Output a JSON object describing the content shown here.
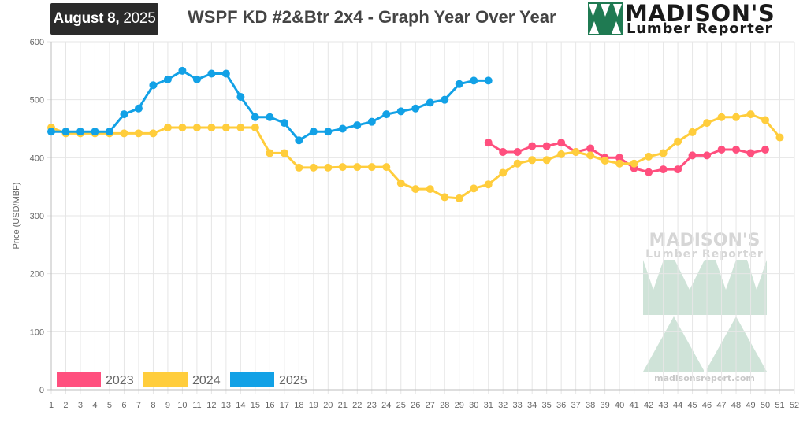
{
  "header": {
    "date_bold": "August 8,",
    "date_year": "2025",
    "title": "WSPF KD #2&Btr 2x4 - Graph Year Over Year",
    "logo_name": "MADISON'S",
    "logo_sub": "Lumber Reporter"
  },
  "watermark": {
    "name": "MADISON'S",
    "sub": "Lumber Reporter",
    "url": "madisonsreport.com"
  },
  "chart_data": {
    "type": "line",
    "title": "WSPF KD #2&Btr 2x4 - Graph Year Over Year",
    "xlabel": "",
    "ylabel": "Price (USD/MBF)",
    "x": [
      1,
      2,
      3,
      4,
      5,
      6,
      7,
      8,
      9,
      10,
      11,
      12,
      13,
      14,
      15,
      16,
      17,
      18,
      19,
      20,
      21,
      22,
      23,
      24,
      25,
      26,
      27,
      28,
      29,
      30,
      31,
      32,
      33,
      34,
      35,
      36,
      37,
      38,
      39,
      40,
      41,
      42,
      43,
      44,
      45,
      46,
      47,
      48,
      49,
      50,
      51,
      52
    ],
    "xlim": [
      1,
      52
    ],
    "ylim": [
      0,
      600
    ],
    "yticks": [
      0,
      100,
      200,
      300,
      400,
      500,
      600
    ],
    "grid": true,
    "legend_position": "bottom-left",
    "series": [
      {
        "name": "2023",
        "color": "#ff4f7e",
        "x": [
          31,
          32,
          33,
          34,
          35,
          36,
          37,
          38,
          39,
          40,
          41,
          42,
          43,
          44,
          45,
          46,
          47,
          48,
          49,
          50
        ],
        "values": [
          426,
          410,
          410,
          420,
          420,
          426,
          410,
          416,
          400,
          400,
          382,
          375,
          380,
          380,
          404,
          404,
          414,
          414,
          408,
          414
        ]
      },
      {
        "name": "2024",
        "color": "#ffcd3c",
        "x": [
          1,
          2,
          3,
          4,
          5,
          6,
          7,
          8,
          9,
          10,
          11,
          12,
          13,
          14,
          15,
          16,
          17,
          18,
          19,
          20,
          21,
          22,
          23,
          24,
          25,
          26,
          27,
          28,
          29,
          30,
          31,
          32,
          33,
          34,
          35,
          36,
          37,
          38,
          39,
          40,
          41,
          42,
          43,
          44,
          45,
          46,
          47,
          48,
          49,
          50,
          51
        ],
        "values": [
          452,
          442,
          442,
          442,
          442,
          442,
          442,
          442,
          452,
          452,
          452,
          452,
          452,
          452,
          452,
          408,
          408,
          383,
          383,
          383,
          384,
          384,
          384,
          384,
          356,
          346,
          346,
          332,
          330,
          347,
          354,
          374,
          390,
          396,
          396,
          406,
          410,
          404,
          395,
          390,
          390,
          402,
          408,
          428,
          444,
          460,
          470,
          470,
          475,
          465,
          435
        ]
      },
      {
        "name": "2025",
        "color": "#12a1e6",
        "x": [
          1,
          2,
          3,
          4,
          5,
          6,
          7,
          8,
          9,
          10,
          11,
          12,
          13,
          14,
          15,
          16,
          17,
          18,
          19,
          20,
          21,
          22,
          23,
          24,
          25,
          26,
          27,
          28,
          29,
          30,
          31
        ],
        "values": [
          445,
          445,
          445,
          445,
          445,
          475,
          485,
          525,
          535,
          550,
          535,
          545,
          545,
          505,
          470,
          470,
          460,
          430,
          445,
          445,
          450,
          456,
          462,
          475,
          480,
          485,
          495,
          500,
          527,
          533,
          533
        ]
      }
    ]
  }
}
